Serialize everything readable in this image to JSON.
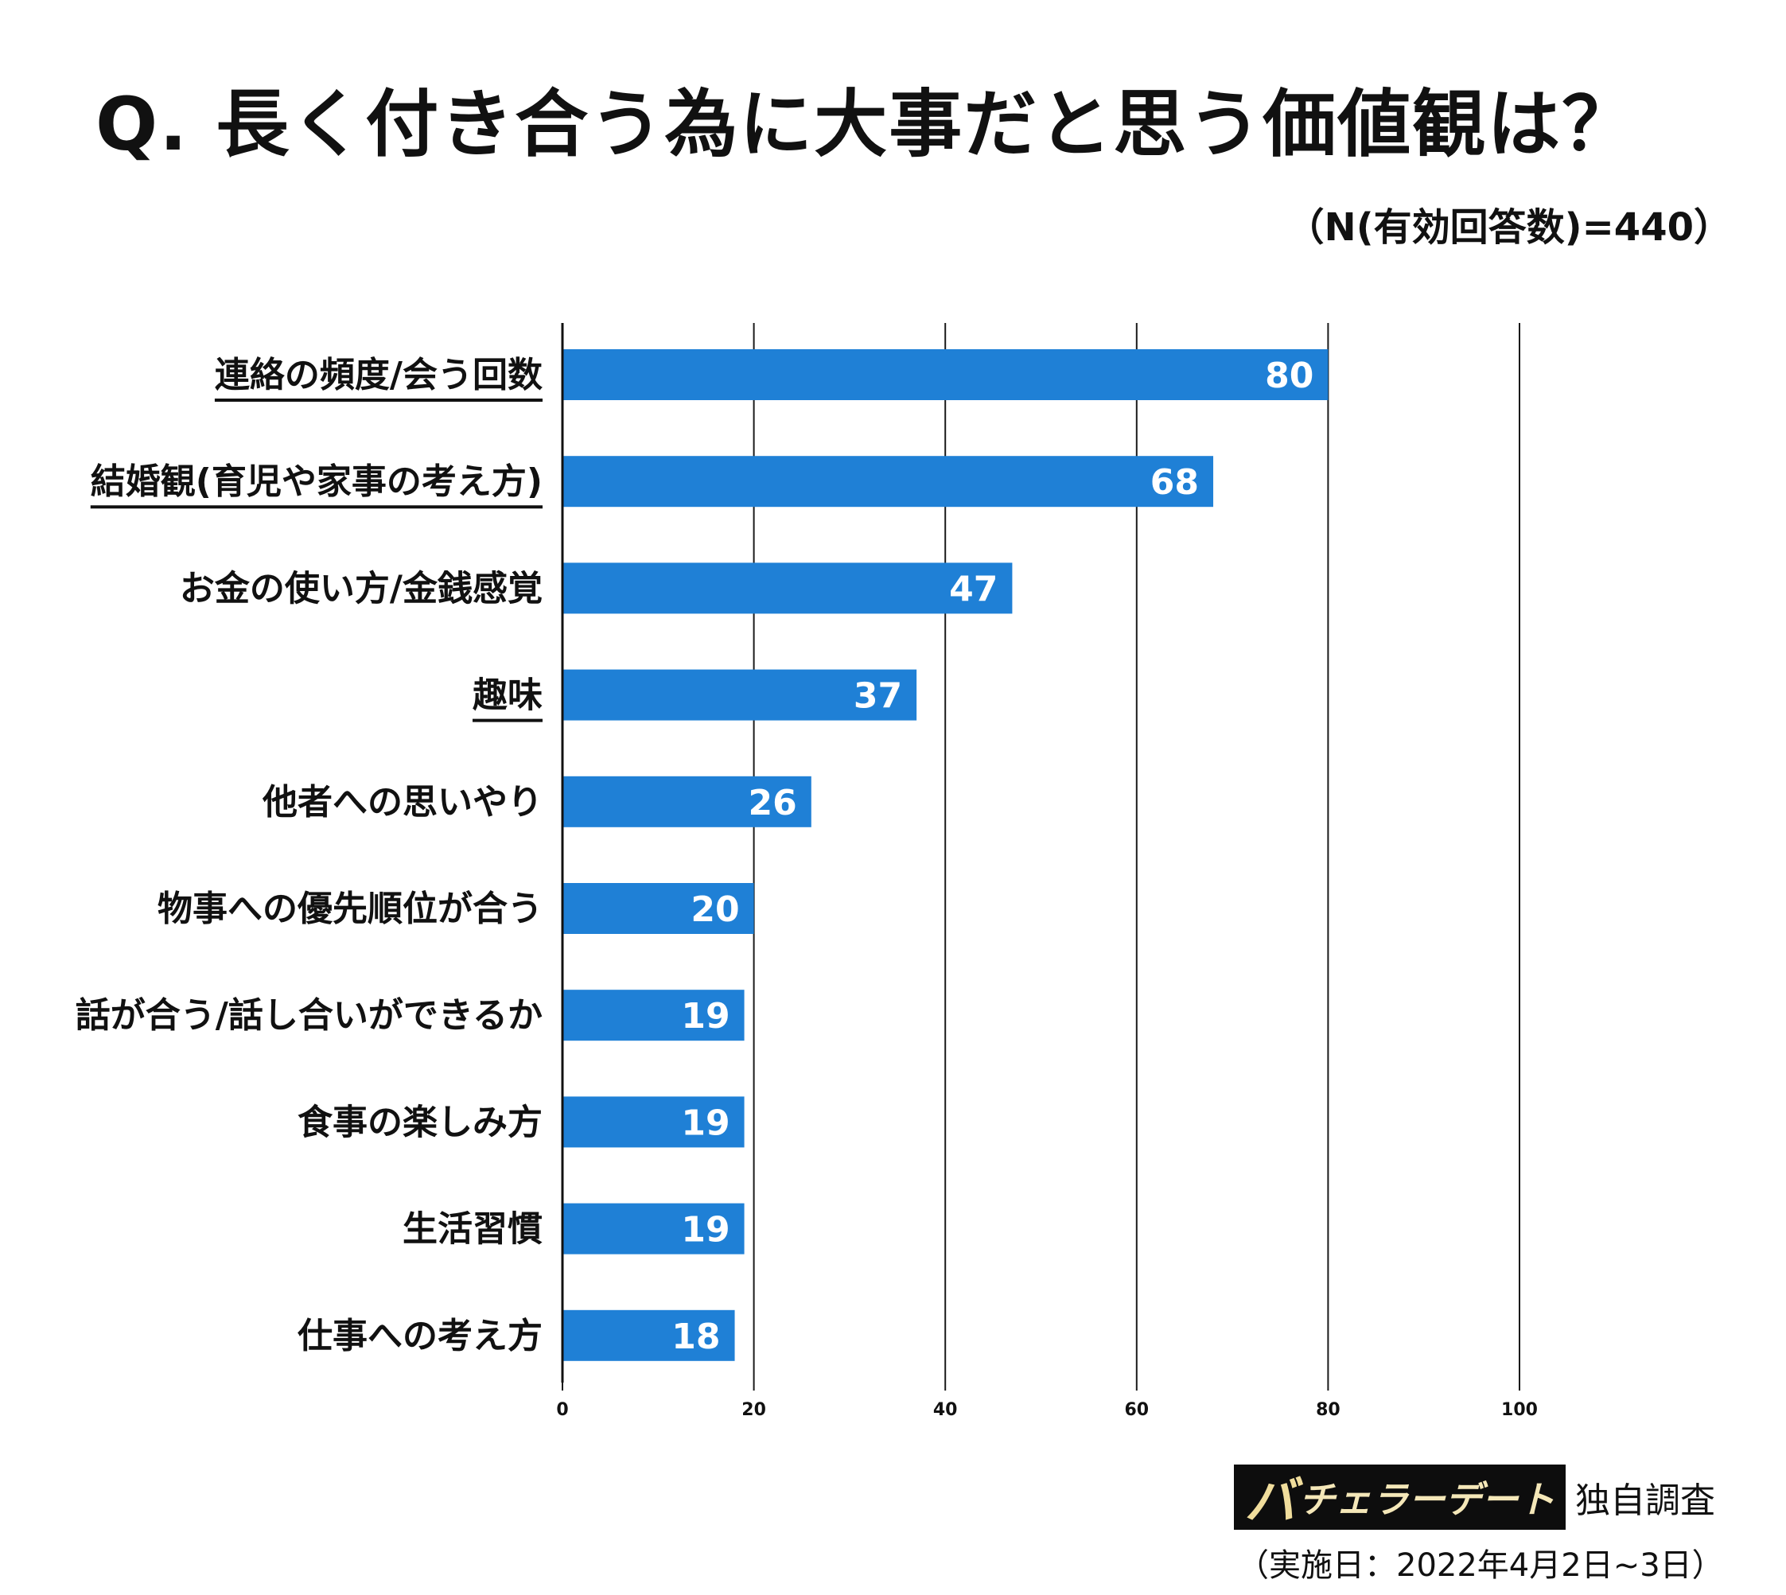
{
  "chart_data": {
    "type": "bar",
    "orientation": "horizontal",
    "title": "Q. 長く付き合う為に大事だと思う価値観は？",
    "subtitle": "（N(有効回答数)=440）",
    "categories": [
      "連絡の頻度/会う回数",
      "結婚観(育児や家事の考え方)",
      "お金の使い方/金銭感覚",
      "趣味",
      "他者への思いやり",
      "物事への優先順位が合う",
      "話が合う/話し合いができるか",
      "食事の楽しみ方",
      "生活習慣",
      "仕事への考え方"
    ],
    "values": [
      80,
      68,
      47,
      37,
      26,
      20,
      19,
      19,
      19,
      18
    ],
    "underlined": [
      true,
      true,
      false,
      true,
      false,
      false,
      false,
      false,
      false,
      false
    ],
    "xlim": [
      0,
      100
    ],
    "xticks": [
      0,
      20,
      40,
      60,
      80,
      100
    ],
    "grid": true,
    "bar_color": "#1f80d6"
  },
  "footer": {
    "brand_ba": "バ",
    "brand_rest": "チェラーデート",
    "survey_note": "独自調査",
    "survey_date": "（実施日：2022年4月2日~3日）"
  }
}
